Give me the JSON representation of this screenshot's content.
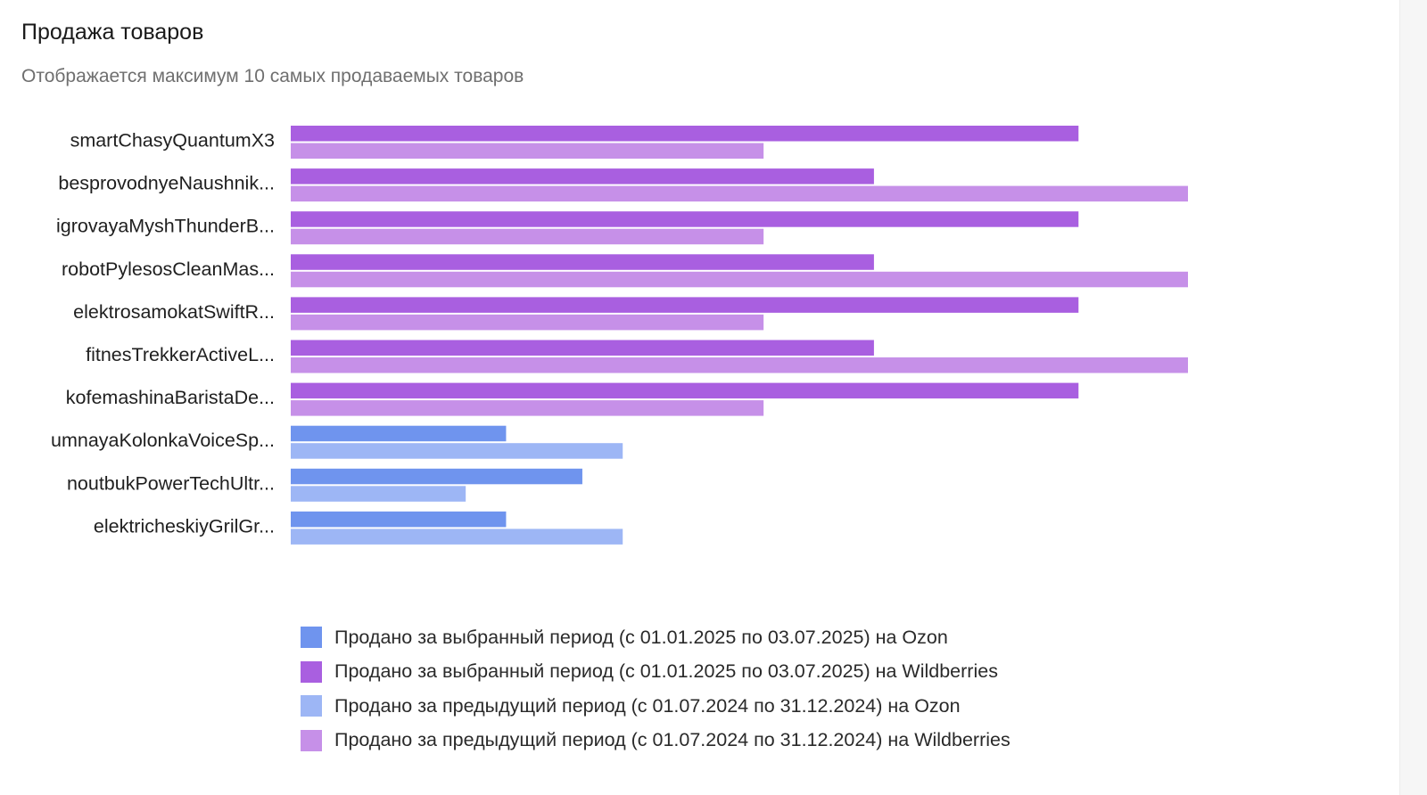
{
  "header": {
    "title": "Продажа товаров",
    "subtitle": "Отображается максимум 10 самых продаваемых товаров"
  },
  "colors": {
    "ozon_current": "#6f94ee",
    "wb_current": "#a95fe0",
    "ozon_previous": "#9db6f5",
    "wb_previous": "#c690e8"
  },
  "chart_data": {
    "type": "bar",
    "orientation": "horizontal",
    "title": "Продажа товаров",
    "categories": [
      "smartChasyQuantumX3",
      "besprovodnyeNaushnik...",
      "igrovayaMyshThunderB...",
      "robotPylesosCleanMas...",
      "elektrosamokatSwiftR...",
      "fitnesTrekkerActiveL...",
      "kofemashinaBaristaDe...",
      "umnayaKolonkaVoiceSp...",
      "noutbukPowerTechUltr...",
      "elektricheskiyGrilGr..."
    ],
    "xlim": [
      0,
      100
    ],
    "grid": false,
    "legend_position": "bottom",
    "rows": [
      {
        "current": 87.8,
        "previous": 52.7,
        "marketplace": "wb"
      },
      {
        "current": 65.0,
        "previous": 100,
        "marketplace": "wb"
      },
      {
        "current": 87.8,
        "previous": 52.7,
        "marketplace": "wb"
      },
      {
        "current": 65.0,
        "previous": 100,
        "marketplace": "wb"
      },
      {
        "current": 87.8,
        "previous": 52.7,
        "marketplace": "wb"
      },
      {
        "current": 65.0,
        "previous": 100,
        "marketplace": "wb"
      },
      {
        "current": 87.8,
        "previous": 52.7,
        "marketplace": "wb"
      },
      {
        "current": 24.0,
        "previous": 37.0,
        "marketplace": "ozon"
      },
      {
        "current": 32.5,
        "previous": 19.5,
        "marketplace": "ozon"
      },
      {
        "current": 24.0,
        "previous": 37.0,
        "marketplace": "ozon"
      }
    ],
    "legend": [
      {
        "label": "Продано за выбранный период (с 01.01.2025 по 03.07.2025) на Ozon",
        "color": "#6f94ee"
      },
      {
        "label": "Продано за выбранный период (с 01.01.2025 по 03.07.2025) на Wildberries",
        "color": "#a95fe0"
      },
      {
        "label": "Продано за предыдущий период (с 01.07.2024 по 31.12.2024) на Ozon",
        "color": "#9db6f5"
      },
      {
        "label": "Продано за предыдущий период (с 01.07.2024 по 31.12.2024) на Wildberries",
        "color": "#c690e8"
      }
    ]
  }
}
